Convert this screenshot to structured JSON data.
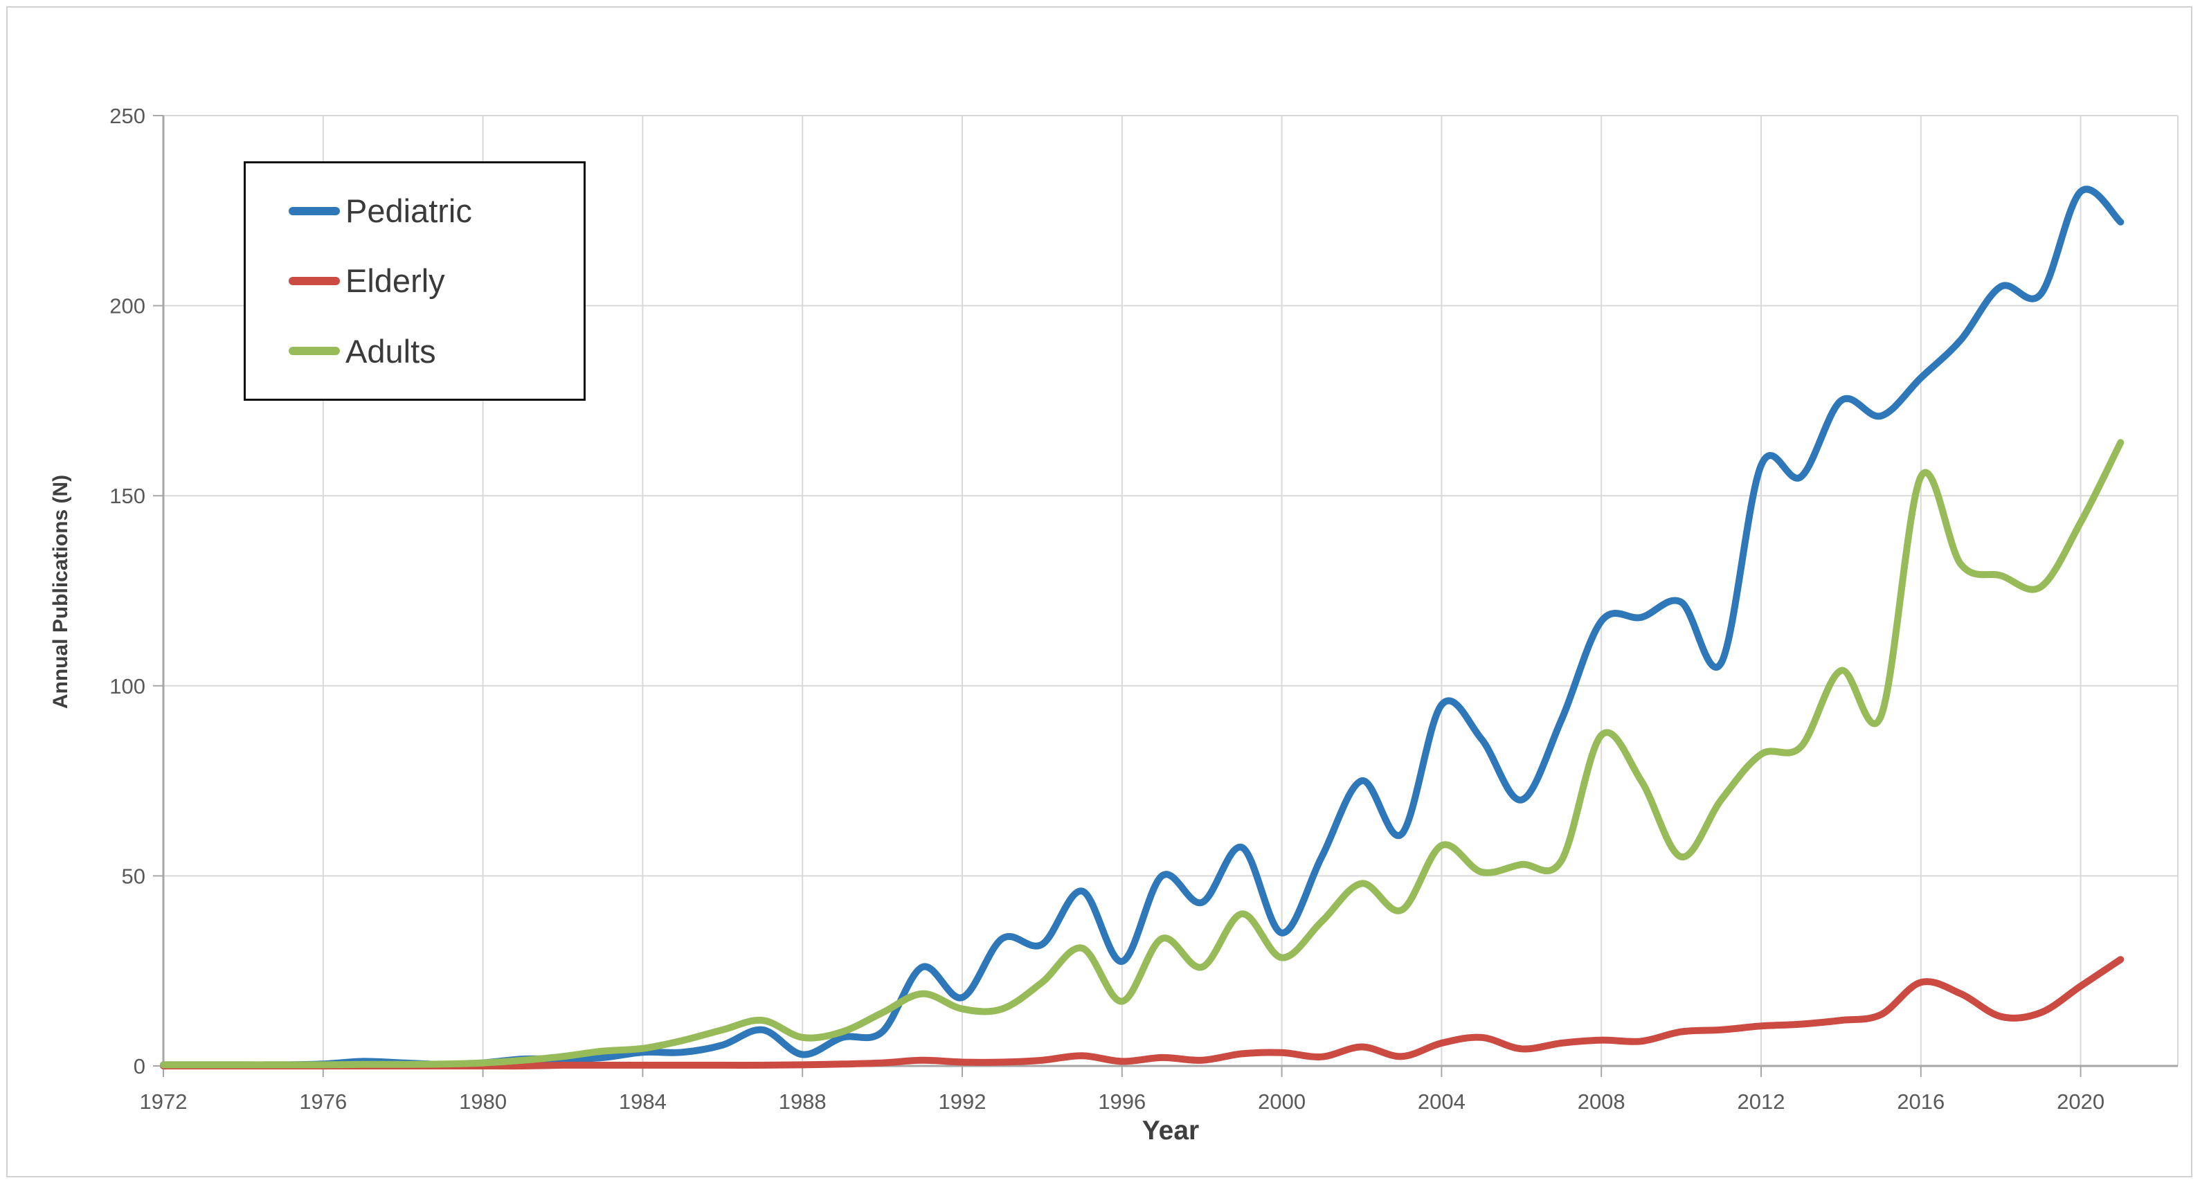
{
  "figure": {
    "background": "#ffffff",
    "border_color": "#d2d2d2"
  },
  "styles": {
    "gridline_color": "#d9d9d9",
    "axis_line_color": "#a6a6a6",
    "tick_label_color": "#595959",
    "axis_title_color": "#3f3f3f",
    "legend_border_color": "#111111",
    "series_line_width": 10
  },
  "chart_data": {
    "type": "line",
    "title": "",
    "xlabel": "Year",
    "ylabel": "Annual Publications (N)",
    "x_ticks": [
      1972,
      1976,
      1980,
      1984,
      1988,
      1992,
      1996,
      2000,
      2004,
      2008,
      2012,
      2016,
      2020
    ],
    "y_ticks": [
      0,
      50,
      100,
      150,
      200,
      250
    ],
    "xlim": [
      1972,
      2022.4
    ],
    "ylim": [
      0,
      250
    ],
    "grid": true,
    "smoothed_lines": true,
    "legend_position": "upper-left",
    "x": [
      1972,
      1973,
      1974,
      1975,
      1976,
      1977,
      1978,
      1979,
      1980,
      1981,
      1982,
      1983,
      1984,
      1985,
      1986,
      1987,
      1988,
      1989,
      1990,
      1991,
      1992,
      1993,
      1994,
      1995,
      1996,
      1997,
      1998,
      1999,
      2000,
      2001,
      2002,
      2003,
      2004,
      2005,
      2006,
      2007,
      2008,
      2009,
      2010,
      2011,
      2012,
      2013,
      2014,
      2015,
      2016,
      2017,
      2018,
      2019,
      2020,
      2021
    ],
    "series": [
      {
        "name": "Pediatric",
        "color": "#2e77b8",
        "values": [
          0.3,
          0.3,
          0.3,
          0.3,
          0.5,
          1.2,
          0.8,
          0.4,
          0.8,
          1.8,
          1.8,
          2.2,
          3.6,
          3.6,
          5.5,
          9.5,
          3,
          7.5,
          9,
          26,
          18,
          33.5,
          32,
          46,
          27.5,
          50,
          43,
          57.5,
          35,
          55,
          75,
          61,
          95,
          86,
          70,
          91,
          117,
          118,
          122,
          106,
          158,
          155,
          175,
          171,
          181,
          191,
          205,
          203,
          230,
          222
        ]
      },
      {
        "name": "Elderly",
        "color": "#cb4a42",
        "values": [
          0,
          0,
          0,
          0,
          0,
          0,
          0,
          0,
          0,
          0,
          0.2,
          0.2,
          0.2,
          0.2,
          0.2,
          0.2,
          0.3,
          0.5,
          0.8,
          1.5,
          1,
          1,
          1.5,
          2.7,
          1.2,
          2.2,
          1.5,
          3.2,
          3.5,
          2.4,
          5,
          2.5,
          6,
          7.5,
          4.5,
          6,
          6.8,
          6.5,
          9,
          9.5,
          10.5,
          11,
          12,
          13.5,
          22,
          19,
          13,
          14,
          21,
          28
        ]
      },
      {
        "name": "Adults",
        "color": "#98bb59",
        "values": [
          0.3,
          0.3,
          0.3,
          0.3,
          0.3,
          0.4,
          0.4,
          0.5,
          0.8,
          1.5,
          2.5,
          3.9,
          4.6,
          6.7,
          9.5,
          12,
          7.5,
          9,
          14,
          19,
          15,
          15,
          22,
          31,
          17,
          33.5,
          26,
          40,
          28.5,
          38,
          48,
          41,
          58,
          51,
          53,
          54,
          87,
          75,
          55,
          70,
          82,
          84,
          104,
          92,
          155,
          132,
          129,
          126,
          143,
          164
        ]
      }
    ]
  }
}
